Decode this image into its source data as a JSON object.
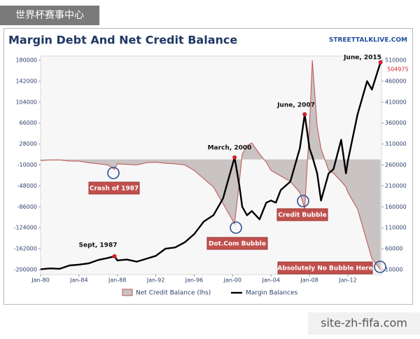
{
  "watermark": {
    "top": "世界杯赛事中心",
    "bottom": "site-zh-fifa.com"
  },
  "chart_data": {
    "type": "line",
    "title": "Margin Debt And Net Credit Balance",
    "source": "STREETTALKLIVE.COM",
    "x": [
      1980,
      1981,
      1982,
      1983,
      1984,
      1985,
      1986,
      1987,
      1987.7,
      1988,
      1989,
      1990,
      1991,
      1992,
      1993,
      1994,
      1995,
      1996,
      1997,
      1998,
      1999,
      2000.2,
      2000.7,
      2001,
      2001.5,
      2002,
      2002.8,
      2003.5,
      2004,
      2004.5,
      2005,
      2006,
      2007,
      2007.5,
      2008,
      2008.3,
      2008.8,
      2009.2,
      2010,
      2010.5,
      2011.3,
      2011.8,
      2012,
      2013,
      2014,
      2014.5,
      2015.4
    ],
    "xlim": [
      1980,
      2015.5
    ],
    "xticks": [
      {
        "value": 1980,
        "label": "Jan-80"
      },
      {
        "value": 1984,
        "label": "Jan-84"
      },
      {
        "value": 1988,
        "label": "Jan-88"
      },
      {
        "value": 1992,
        "label": "Jan-92"
      },
      {
        "value": 1996,
        "label": "Jan-96"
      },
      {
        "value": 2000,
        "label": "Jan-00"
      },
      {
        "value": 2004,
        "label": "Jan-04"
      },
      {
        "value": 2008,
        "label": "Jan-08"
      },
      {
        "value": 2012,
        "label": "Jan-12"
      }
    ],
    "ylim": [
      -200000,
      180000
    ],
    "yticks": [
      180000,
      142000,
      104000,
      66000,
      28000,
      -10000,
      -48000,
      -86000,
      -124000,
      -162000,
      -200000
    ],
    "y2lim": [
      10000,
      510000
    ],
    "y2ticks": [
      510000,
      460000,
      410000,
      360000,
      310000,
      260000,
      210000,
      160000,
      110000,
      60000,
      10000
    ],
    "series": [
      {
        "name": "Net Credit Balance (lhs)",
        "color": "#c0504d",
        "fill": "#c9c3c3",
        "style": "area",
        "values": [
          -2000,
          -1000,
          -1000,
          -3000,
          -3000,
          -6000,
          -8000,
          -10000,
          -18000,
          -8000,
          -9000,
          -10000,
          -6000,
          -5000,
          -7000,
          -8000,
          -10000,
          -20000,
          -35000,
          -50000,
          -80000,
          -117000,
          -40000,
          10000,
          25000,
          30000,
          10000,
          -5000,
          -20000,
          -25000,
          -30000,
          -40000,
          -60000,
          -90000,
          60000,
          180000,
          60000,
          20000,
          -20000,
          -25000,
          -40000,
          -50000,
          -60000,
          -90000,
          -150000,
          -180000,
          -200000
        ]
      },
      {
        "name": "Margin Balances",
        "color": "#000000",
        "axis": "y2",
        "style": "line",
        "values": [
          11000,
          13000,
          12000,
          20000,
          22000,
          25000,
          33000,
          38000,
          42000,
          32000,
          34000,
          29000,
          36000,
          43000,
          60000,
          63000,
          75000,
          95000,
          125000,
          140000,
          180000,
          278000,
          210000,
          160000,
          140000,
          150000,
          130000,
          170000,
          175000,
          170000,
          200000,
          220000,
          300000,
          381000,
          300000,
          280000,
          240000,
          175000,
          240000,
          250000,
          320000,
          240000,
          270000,
          380000,
          460000,
          440000,
          504975
        ]
      }
    ],
    "annotations": [
      "Sept, 1987",
      "March, 2000",
      "June, 2007",
      "June, 2015",
      "Crash of 1987",
      "Dot.Com Bubble",
      "Credit Bubble",
      "Absolutely No Bubble Here"
    ],
    "grid": false
  }
}
